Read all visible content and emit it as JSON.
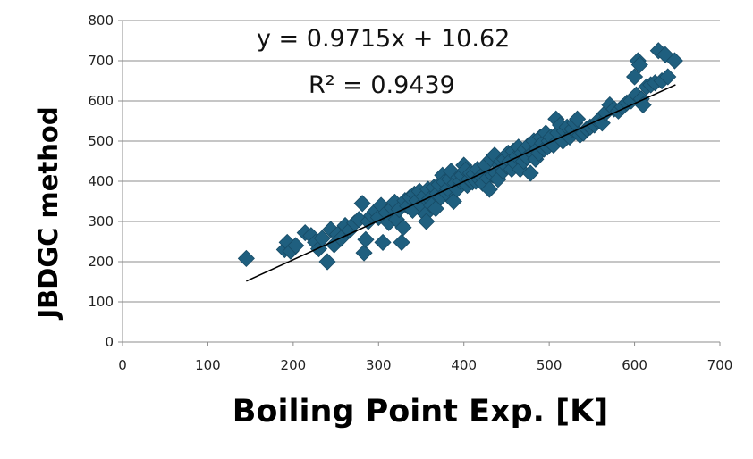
{
  "chart_data": {
    "type": "scatter",
    "title": "",
    "xlabel": "Boiling Point Exp. [K]",
    "ylabel": "JBDGC method",
    "xlim": [
      0,
      700
    ],
    "ylim": [
      0,
      800
    ],
    "x_ticks": [
      "0",
      "100",
      "200",
      "300",
      "400",
      "500",
      "600",
      "700"
    ],
    "y_ticks": [
      "0",
      "100",
      "200",
      "300",
      "400",
      "500",
      "600",
      "700",
      "800"
    ],
    "grid": "horizontal",
    "legend": "none",
    "marker": "diamond",
    "marker_color": "#1F5F7F",
    "trendline": {
      "slope": 0.9715,
      "intercept": 10.62,
      "x_range": [
        145,
        648
      ],
      "equation_label": "y = 0.9715x + 10.62",
      "r2_label": "R² = 0.9439",
      "color": "#000000"
    },
    "points": [
      [
        145,
        208
      ],
      [
        190,
        230
      ],
      [
        193,
        248
      ],
      [
        197,
        226
      ],
      [
        203,
        240
      ],
      [
        214,
        272
      ],
      [
        221,
        265
      ],
      [
        226,
        248
      ],
      [
        230,
        232
      ],
      [
        234,
        258
      ],
      [
        240,
        200
      ],
      [
        244,
        280
      ],
      [
        248,
        242
      ],
      [
        252,
        268
      ],
      [
        256,
        258
      ],
      [
        261,
        290
      ],
      [
        266,
        278
      ],
      [
        272,
        296
      ],
      [
        277,
        305
      ],
      [
        281,
        345
      ],
      [
        283,
        222
      ],
      [
        285,
        255
      ],
      [
        288,
        300
      ],
      [
        292,
        315
      ],
      [
        296,
        325
      ],
      [
        300,
        310
      ],
      [
        303,
        340
      ],
      [
        305,
        248
      ],
      [
        309,
        322
      ],
      [
        312,
        297
      ],
      [
        316,
        334
      ],
      [
        319,
        348
      ],
      [
        321,
        305
      ],
      [
        324,
        330
      ],
      [
        327,
        248
      ],
      [
        329,
        285
      ],
      [
        331,
        352
      ],
      [
        334,
        338
      ],
      [
        337,
        360
      ],
      [
        340,
        328
      ],
      [
        342,
        368
      ],
      [
        345,
        352
      ],
      [
        348,
        375
      ],
      [
        350,
        340
      ],
      [
        353,
        362
      ],
      [
        355,
        318
      ],
      [
        356,
        300
      ],
      [
        358,
        380
      ],
      [
        360,
        356
      ],
      [
        362,
        340
      ],
      [
        365,
        385
      ],
      [
        367,
        332
      ],
      [
        369,
        370
      ],
      [
        371,
        392
      ],
      [
        373,
        360
      ],
      [
        375,
        415
      ],
      [
        377,
        398
      ],
      [
        379,
        372
      ],
      [
        381,
        382
      ],
      [
        383,
        405
      ],
      [
        385,
        425
      ],
      [
        388,
        350
      ],
      [
        390,
        395
      ],
      [
        392,
        380
      ],
      [
        394,
        410
      ],
      [
        396,
        400
      ],
      [
        398,
        415
      ],
      [
        400,
        440
      ],
      [
        402,
        428
      ],
      [
        404,
        390
      ],
      [
        406,
        405
      ],
      [
        408,
        420
      ],
      [
        410,
        398
      ],
      [
        412,
        418
      ],
      [
        414,
        400
      ],
      [
        416,
        430
      ],
      [
        418,
        405
      ],
      [
        420,
        412
      ],
      [
        422,
        395
      ],
      [
        425,
        440
      ],
      [
        428,
        408
      ],
      [
        430,
        380
      ],
      [
        432,
        455
      ],
      [
        434,
        415
      ],
      [
        436,
        465
      ],
      [
        438,
        420
      ],
      [
        440,
        405
      ],
      [
        442,
        440
      ],
      [
        444,
        450
      ],
      [
        446,
        425
      ],
      [
        448,
        455
      ],
      [
        450,
        438
      ],
      [
        452,
        470
      ],
      [
        454,
        450
      ],
      [
        456,
        430
      ],
      [
        458,
        475
      ],
      [
        460,
        445
      ],
      [
        462,
        462
      ],
      [
        464,
        485
      ],
      [
        466,
        430
      ],
      [
        468,
        470
      ],
      [
        470,
        450
      ],
      [
        472,
        480
      ],
      [
        474,
        460
      ],
      [
        476,
        490
      ],
      [
        478,
        420
      ],
      [
        480,
        470
      ],
      [
        482,
        500
      ],
      [
        484,
        455
      ],
      [
        486,
        480
      ],
      [
        488,
        470
      ],
      [
        490,
        510
      ],
      [
        492,
        495
      ],
      [
        494,
        480
      ],
      [
        496,
        520
      ],
      [
        498,
        485
      ],
      [
        500,
        500
      ],
      [
        502,
        510
      ],
      [
        505,
        490
      ],
      [
        508,
        555
      ],
      [
        510,
        520
      ],
      [
        513,
        540
      ],
      [
        516,
        500
      ],
      [
        518,
        525
      ],
      [
        521,
        535
      ],
      [
        524,
        510
      ],
      [
        527,
        530
      ],
      [
        530,
        545
      ],
      [
        533,
        555
      ],
      [
        536,
        515
      ],
      [
        540,
        520
      ],
      [
        544,
        530
      ],
      [
        548,
        535
      ],
      [
        553,
        540
      ],
      [
        557,
        550
      ],
      [
        562,
        545
      ],
      [
        566,
        570
      ],
      [
        571,
        590
      ],
      [
        576,
        580
      ],
      [
        581,
        575
      ],
      [
        586,
        585
      ],
      [
        591,
        595
      ],
      [
        596,
        600
      ],
      [
        600,
        660
      ],
      [
        602,
        615
      ],
      [
        604,
        700
      ],
      [
        606,
        690
      ],
      [
        608,
        605
      ],
      [
        610,
        590
      ],
      [
        614,
        635
      ],
      [
        619,
        640
      ],
      [
        624,
        645
      ],
      [
        628,
        725
      ],
      [
        632,
        650
      ],
      [
        636,
        715
      ],
      [
        639,
        660
      ],
      [
        647,
        700
      ]
    ]
  }
}
